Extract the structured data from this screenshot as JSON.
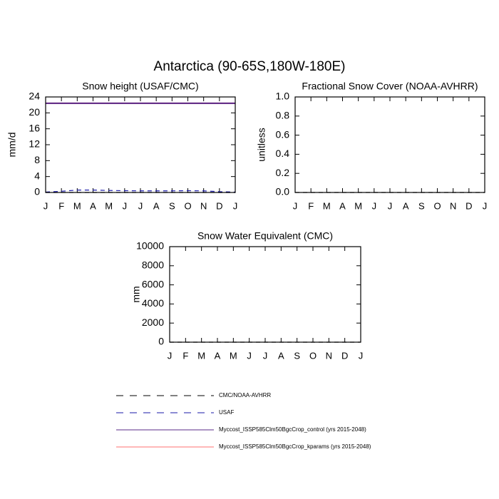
{
  "title": "Antarctica (90-65S,180W-180E)",
  "chart_data": [
    {
      "type": "line",
      "title": "Snow height (USAF/CMC)",
      "ylabel": "mm/d",
      "x": [
        0,
        1,
        2,
        3,
        4,
        5,
        6,
        7,
        8,
        9,
        10,
        11,
        12
      ],
      "xlim": [
        0,
        12
      ],
      "xticks": [
        {
          "value": 0,
          "label": "J"
        },
        {
          "value": 1,
          "label": "F"
        },
        {
          "value": 2,
          "label": "M"
        },
        {
          "value": 3,
          "label": "A"
        },
        {
          "value": 4,
          "label": "M"
        },
        {
          "value": 5,
          "label": "J"
        },
        {
          "value": 6,
          "label": "J"
        },
        {
          "value": 7,
          "label": "A"
        },
        {
          "value": 8,
          "label": "S"
        },
        {
          "value": 9,
          "label": "O"
        },
        {
          "value": 10,
          "label": "N"
        },
        {
          "value": 11,
          "label": "D"
        },
        {
          "value": 12,
          "label": "J"
        }
      ],
      "ylim": [
        0,
        24
      ],
      "yticks": [
        0,
        4,
        8,
        12,
        16,
        20,
        24
      ],
      "series": [
        {
          "name": "CMC/NOAA-AVHRR",
          "color": "#000000",
          "dash": true,
          "values": [
            0,
            0,
            0,
            0,
            0,
            0,
            0,
            0,
            0,
            0,
            0,
            0,
            0
          ]
        },
        {
          "name": "USAF",
          "color": "#1a1aa8",
          "dash": true,
          "values": [
            0.1,
            0.3,
            0.6,
            0.6,
            0.5,
            0.45,
            0.4,
            0.4,
            0.4,
            0.45,
            0.4,
            0.2,
            0.1
          ]
        },
        {
          "name": "Myccost_ISSP585Clm50BgcCrop_control (yrs 2015-2048)",
          "color": "#5a2a8a",
          "dash": false,
          "values": [
            22.4,
            22.4,
            22.4,
            22.4,
            22.4,
            22.4,
            22.4,
            22.4,
            22.4,
            22.4,
            22.4,
            22.4,
            22.4
          ]
        },
        {
          "name": "Myccost_ISSP585Clm50BgcCrop_kparams (yrs 2015-2048)",
          "color": "#ff7070",
          "dash": false,
          "values": [
            22.4,
            22.4,
            22.4,
            22.4,
            22.4,
            22.4,
            22.4,
            22.4,
            22.4,
            22.4,
            22.4,
            22.4,
            22.4
          ]
        }
      ]
    },
    {
      "type": "line",
      "title": "Fractional Snow Cover (NOAA-AVHRR)",
      "ylabel": "unitless",
      "x": [
        0,
        1,
        2,
        3,
        4,
        5,
        6,
        7,
        8,
        9,
        10,
        11,
        12
      ],
      "xlim": [
        0,
        12
      ],
      "xticks": [
        {
          "value": 0,
          "label": "J"
        },
        {
          "value": 1,
          "label": "F"
        },
        {
          "value": 2,
          "label": "M"
        },
        {
          "value": 3,
          "label": "A"
        },
        {
          "value": 4,
          "label": "M"
        },
        {
          "value": 5,
          "label": "J"
        },
        {
          "value": 6,
          "label": "J"
        },
        {
          "value": 7,
          "label": "A"
        },
        {
          "value": 8,
          "label": "S"
        },
        {
          "value": 9,
          "label": "O"
        },
        {
          "value": 10,
          "label": "N"
        },
        {
          "value": 11,
          "label": "D"
        },
        {
          "value": 12,
          "label": "J"
        }
      ],
      "ylim": [
        0,
        1
      ],
      "yticks": [
        {
          "value": 0,
          "label": "0.0"
        },
        0.2,
        0.4,
        0.6,
        0.8,
        {
          "value": 1,
          "label": "1.0"
        }
      ],
      "series": [
        {
          "name": "CMC/NOAA-AVHRR",
          "color": "#000000",
          "dash": true,
          "values": [
            0,
            0,
            0,
            0,
            0,
            0,
            0,
            0,
            0,
            0,
            0,
            0,
            0
          ]
        }
      ]
    },
    {
      "type": "line",
      "title": "Snow Water Equivalent (CMC)",
      "ylabel": "mm",
      "x": [
        0,
        1,
        2,
        3,
        4,
        5,
        6,
        7,
        8,
        9,
        10,
        11,
        12
      ],
      "xlim": [
        0,
        12
      ],
      "xticks": [
        {
          "value": 0,
          "label": "J"
        },
        {
          "value": 1,
          "label": "F"
        },
        {
          "value": 2,
          "label": "M"
        },
        {
          "value": 3,
          "label": "A"
        },
        {
          "value": 4,
          "label": "M"
        },
        {
          "value": 5,
          "label": "J"
        },
        {
          "value": 6,
          "label": "J"
        },
        {
          "value": 7,
          "label": "A"
        },
        {
          "value": 8,
          "label": "S"
        },
        {
          "value": 9,
          "label": "O"
        },
        {
          "value": 10,
          "label": "N"
        },
        {
          "value": 11,
          "label": "D"
        },
        {
          "value": 12,
          "label": "J"
        }
      ],
      "ylim": [
        0,
        10000
      ],
      "yticks": [
        0,
        2000,
        4000,
        6000,
        8000,
        10000
      ],
      "series": [
        {
          "name": "CMC/NOAA-AVHRR",
          "color": "#000000",
          "dash": true,
          "values": [
            0,
            0,
            0,
            0,
            0,
            0,
            0,
            0,
            0,
            0,
            0,
            0,
            0
          ]
        }
      ]
    }
  ]
}
